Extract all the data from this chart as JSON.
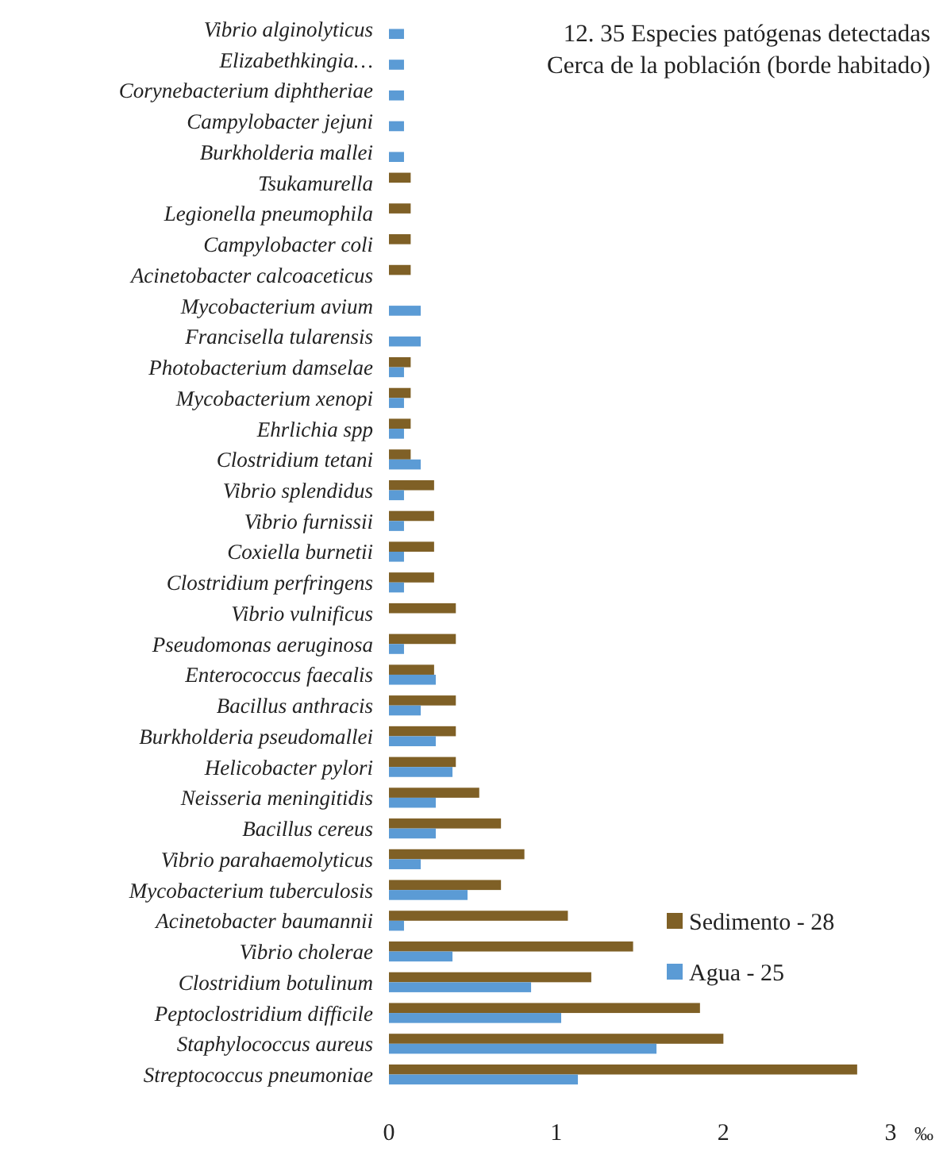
{
  "chart_data": {
    "type": "bar",
    "orientation": "horizontal",
    "title": "12. 35 Especies patógenas detectadas",
    "subtitle": "Cerca de la población (borde habitado)",
    "xlabel": "‰",
    "categories": [
      "Vibrio alginolyticus",
      "Elizabethkingia…",
      "Corynebacterium diphtheriae",
      "Campylobacter jejuni",
      "Burkholderia mallei",
      "Tsukamurella",
      "Legionella pneumophila",
      "Campylobacter coli",
      "Acinetobacter calcoaceticus",
      "Mycobacterium avium",
      "Francisella tularensis",
      "Photobacterium damselae",
      "Mycobacterium xenopi",
      "Ehrlichia spp",
      "Clostridium tetani",
      "Vibrio splendidus",
      "Vibrio furnissii",
      "Coxiella burnetii",
      "Clostridium perfringens",
      "Vibrio vulnificus",
      "Pseudomonas aeruginosa",
      "Enterococcus faecalis",
      "Bacillus anthracis",
      "Burkholderia pseudomallei",
      "Helicobacter pylori",
      "Neisseria meningitidis",
      "Bacillus cereus",
      "Vibrio parahaemolyticus",
      "Mycobacterium tuberculosis",
      "Acinetobacter baumannii",
      "Vibrio cholerae",
      "Clostridium botulinum",
      "Peptoclostridium difficile",
      "Staphylococcus aureus",
      "Streptococcus pneumoniae"
    ],
    "series": [
      {
        "name": "Sedimento - 28",
        "color": "#7f6026",
        "values": [
          null,
          null,
          null,
          null,
          null,
          0.13,
          0.13,
          0.13,
          0.13,
          null,
          null,
          0.13,
          0.13,
          0.13,
          0.13,
          0.27,
          0.27,
          0.27,
          0.27,
          0.4,
          0.4,
          0.27,
          0.4,
          0.4,
          0.4,
          0.54,
          0.67,
          0.81,
          0.67,
          1.07,
          1.46,
          1.21,
          1.86,
          2.0,
          2.8
        ]
      },
      {
        "name": "Agua - 25",
        "color": "#5b9bd5",
        "values": [
          0.09,
          0.09,
          0.09,
          0.09,
          0.09,
          null,
          null,
          null,
          null,
          0.19,
          0.19,
          0.09,
          0.09,
          0.09,
          0.19,
          0.09,
          0.09,
          0.09,
          0.09,
          null,
          0.09,
          0.28,
          0.19,
          0.28,
          0.38,
          0.28,
          0.28,
          0.19,
          0.47,
          0.09,
          0.38,
          0.85,
          1.03,
          1.6,
          1.13
        ]
      }
    ],
    "xlim": [
      0,
      3
    ],
    "xticks": [
      0,
      1,
      2,
      3
    ],
    "grid": false,
    "legend": "bottom right"
  }
}
